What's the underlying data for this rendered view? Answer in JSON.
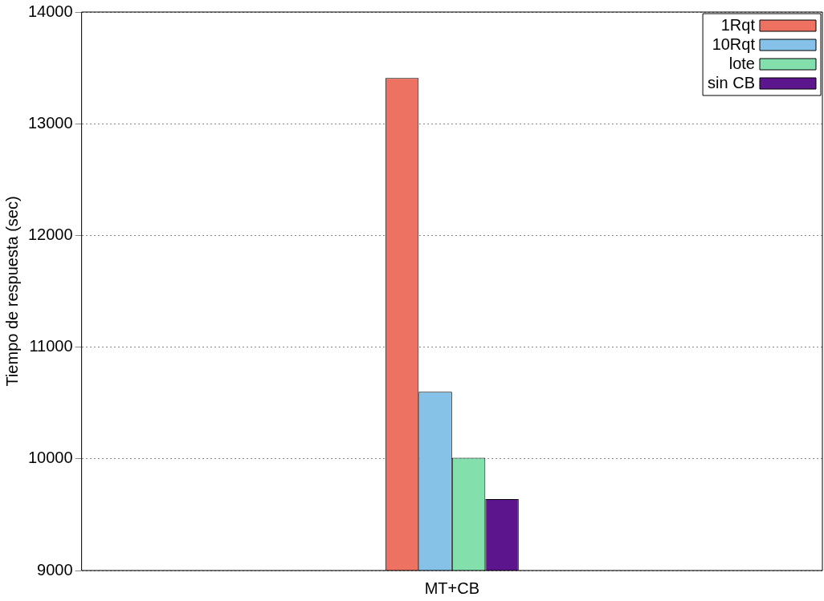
{
  "chart_data": {
    "type": "bar",
    "ylabel": "Tiempo de respuesta (sec)",
    "categories": [
      "MT+CB"
    ],
    "series": [
      {
        "name": "1Rqt",
        "color": "#ee7262",
        "values": [
          13410
        ]
      },
      {
        "name": "10Rqt",
        "color": "#86c1e8",
        "values": [
          10600
        ]
      },
      {
        "name": "lote",
        "color": "#83e0ac",
        "values": [
          10010
        ]
      },
      {
        "name": "sin CB",
        "color": "#5c158d",
        "values": [
          9640
        ]
      }
    ],
    "ylim": [
      9000,
      14000
    ],
    "yticks": [
      9000,
      10000,
      11000,
      12000,
      13000,
      14000
    ],
    "grid": "y",
    "legend": "top right"
  }
}
